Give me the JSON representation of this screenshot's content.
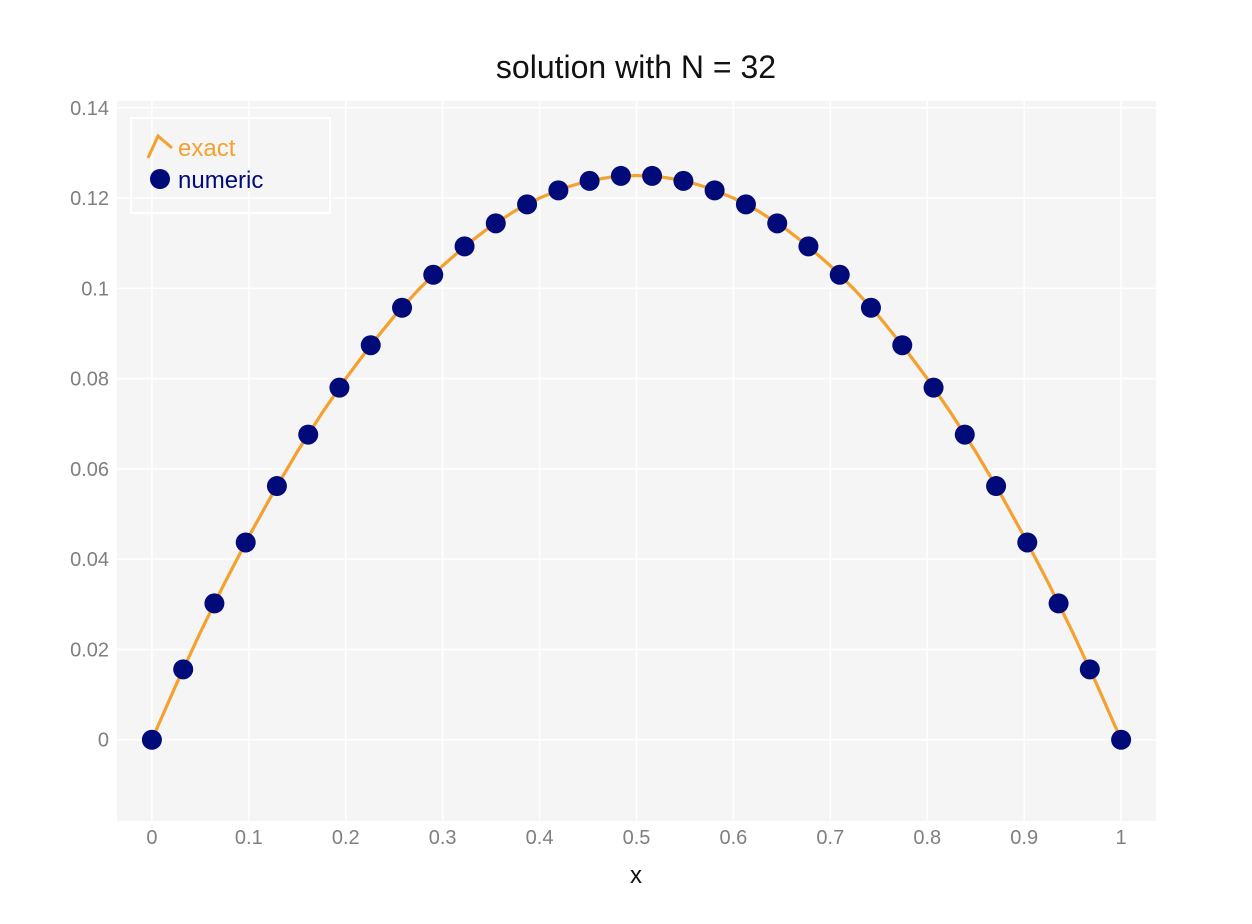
{
  "chart_data": {
    "type": "line",
    "title": "solution with N = 32",
    "xlabel": "x",
    "ylabel": "",
    "xlim": [
      -0.036,
      1.036
    ],
    "ylim": [
      -0.018,
      0.1415
    ],
    "x_ticks": [
      0,
      0.1,
      0.2,
      0.3,
      0.4,
      0.5,
      0.6,
      0.7,
      0.8,
      0.9,
      1
    ],
    "x_tick_labels": [
      "0",
      "0.1",
      "0.2",
      "0.3",
      "0.4",
      "0.5",
      "0.6",
      "0.7",
      "0.8",
      "0.9",
      "1"
    ],
    "y_ticks": [
      0,
      0.02,
      0.04,
      0.06,
      0.08,
      0.1,
      0.12,
      0.14
    ],
    "y_tick_labels": [
      "0",
      "0.02",
      "0.04",
      "0.06",
      "0.08",
      "0.1",
      "0.12",
      "0.14"
    ],
    "grid": true,
    "legend_position": "top-left",
    "colors": {
      "exact": "#f5a02f",
      "numeric": "#000a78",
      "plot_bg": "#f5f5f5",
      "grid": "#ffffff"
    },
    "series": [
      {
        "name": "exact",
        "kind": "line",
        "function": "x*(1-x)/2",
        "x": [
          0,
          0.025,
          0.05,
          0.075,
          0.1,
          0.125,
          0.15,
          0.175,
          0.2,
          0.225,
          0.25,
          0.275,
          0.3,
          0.325,
          0.35,
          0.375,
          0.4,
          0.425,
          0.45,
          0.475,
          0.5,
          0.525,
          0.55,
          0.575,
          0.6,
          0.625,
          0.65,
          0.675,
          0.7,
          0.725,
          0.75,
          0.775,
          0.8,
          0.825,
          0.85,
          0.875,
          0.9,
          0.925,
          0.95,
          0.975,
          1
        ],
        "y": [
          0,
          0.0122,
          0.0238,
          0.0347,
          0.045,
          0.0547,
          0.0638,
          0.0722,
          0.08,
          0.0872,
          0.0938,
          0.0997,
          0.105,
          0.1097,
          0.1138,
          0.1172,
          0.12,
          0.1222,
          0.1238,
          0.1247,
          0.125,
          0.1247,
          0.1238,
          0.1222,
          0.12,
          0.1172,
          0.1138,
          0.1097,
          0.105,
          0.0997,
          0.0938,
          0.0872,
          0.08,
          0.0722,
          0.0638,
          0.0547,
          0.045,
          0.0347,
          0.0238,
          0.0122,
          0
        ]
      },
      {
        "name": "numeric",
        "kind": "markers",
        "x": [
          0,
          0.0323,
          0.0645,
          0.0968,
          0.129,
          0.1613,
          0.1935,
          0.2258,
          0.2581,
          0.2903,
          0.3226,
          0.3548,
          0.3871,
          0.4194,
          0.4516,
          0.4839,
          0.5161,
          0.5484,
          0.5806,
          0.6129,
          0.6452,
          0.6774,
          0.7097,
          0.7419,
          0.7742,
          0.8065,
          0.8387,
          0.871,
          0.9032,
          0.9355,
          0.9677,
          1
        ],
        "y": [
          0,
          0.0156,
          0.0302,
          0.0437,
          0.0562,
          0.0676,
          0.078,
          0.0874,
          0.0957,
          0.103,
          0.1093,
          0.1144,
          0.1186,
          0.1217,
          0.1238,
          0.1249,
          0.1249,
          0.1238,
          0.1217,
          0.1186,
          0.1144,
          0.1093,
          0.103,
          0.0957,
          0.0874,
          0.078,
          0.0676,
          0.0562,
          0.0437,
          0.0302,
          0.0156,
          0
        ]
      }
    ]
  }
}
